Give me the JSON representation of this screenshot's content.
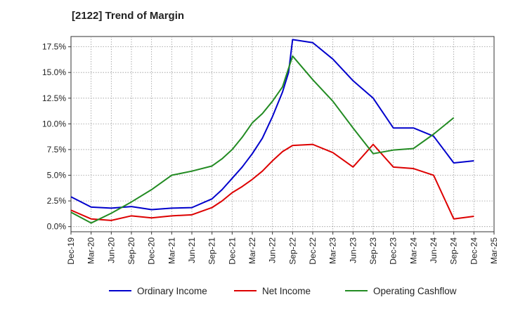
{
  "chart_data": {
    "type": "line",
    "title": "[2122]  Trend of Margin",
    "xlabel": "",
    "ylabel": "",
    "ylim": [
      -0.5,
      18.5
    ],
    "y_ticks": [
      "0.0%",
      "2.5%",
      "5.0%",
      "7.5%",
      "10.0%",
      "12.5%",
      "15.0%",
      "17.5%"
    ],
    "y_tick_values": [
      0,
      2.5,
      5,
      7.5,
      10,
      12.5,
      15,
      17.5
    ],
    "x_ticks": [
      "Dec-19",
      "Mar-20",
      "Jun-20",
      "Sep-20",
      "Dec-20",
      "Mar-21",
      "Jun-21",
      "Sep-21",
      "Dec-21",
      "Mar-22",
      "Jun-22",
      "Sep-22",
      "Dec-22",
      "Mar-23",
      "Jun-23",
      "Sep-23",
      "Dec-23",
      "Mar-24",
      "Jun-24",
      "Sep-24",
      "Dec-24",
      "Mar-25"
    ],
    "grid": true,
    "legend_position": "bottom",
    "series": [
      {
        "name": "Ordinary Income",
        "color": "#0000cc",
        "points": [
          [
            0,
            2.9
          ],
          [
            1,
            1.9
          ],
          [
            2,
            1.8
          ],
          [
            3,
            1.95
          ],
          [
            4,
            1.65
          ],
          [
            5,
            1.8
          ],
          [
            6,
            1.85
          ],
          [
            7,
            2.7
          ],
          [
            7.5,
            3.6
          ],
          [
            8,
            4.7
          ],
          [
            8.5,
            5.8
          ],
          [
            9,
            7.1
          ],
          [
            9.5,
            8.6
          ],
          [
            10,
            10.7
          ],
          [
            10.5,
            13.1
          ],
          [
            10.8,
            15.0
          ],
          [
            11,
            18.2
          ],
          [
            12,
            17.9
          ],
          [
            13,
            16.3
          ],
          [
            14,
            14.2
          ],
          [
            15,
            12.5
          ],
          [
            16,
            9.6
          ],
          [
            17,
            9.6
          ],
          [
            18,
            8.8
          ],
          [
            19,
            6.2
          ],
          [
            20,
            6.4
          ]
        ]
      },
      {
        "name": "Net Income",
        "color": "#dd0000",
        "points": [
          [
            0,
            1.6
          ],
          [
            1,
            0.75
          ],
          [
            2,
            0.6
          ],
          [
            3,
            1.05
          ],
          [
            4,
            0.85
          ],
          [
            5,
            1.05
          ],
          [
            6,
            1.15
          ],
          [
            7,
            1.85
          ],
          [
            7.5,
            2.5
          ],
          [
            8,
            3.3
          ],
          [
            8.5,
            3.9
          ],
          [
            9,
            4.6
          ],
          [
            9.5,
            5.4
          ],
          [
            10,
            6.4
          ],
          [
            10.5,
            7.3
          ],
          [
            11,
            7.9
          ],
          [
            12,
            8.0
          ],
          [
            13,
            7.2
          ],
          [
            14,
            5.8
          ],
          [
            15,
            8.0
          ],
          [
            16,
            5.8
          ],
          [
            17,
            5.65
          ],
          [
            18,
            5.0
          ],
          [
            19,
            0.75
          ],
          [
            20,
            1.0
          ]
        ]
      },
      {
        "name": "Operating Cashflow",
        "color": "#228B22",
        "points": [
          [
            0,
            1.4
          ],
          [
            1,
            0.35
          ],
          [
            2,
            1.3
          ],
          [
            3,
            2.4
          ],
          [
            4,
            3.6
          ],
          [
            5,
            5.0
          ],
          [
            6,
            5.4
          ],
          [
            7,
            5.9
          ],
          [
            7.5,
            6.6
          ],
          [
            8,
            7.5
          ],
          [
            8.5,
            8.7
          ],
          [
            9,
            10.1
          ],
          [
            9.5,
            11.0
          ],
          [
            10,
            12.2
          ],
          [
            10.5,
            13.6
          ],
          [
            11,
            16.6
          ],
          [
            12,
            14.3
          ],
          [
            13,
            12.2
          ],
          [
            14,
            9.6
          ],
          [
            15,
            7.1
          ],
          [
            16,
            7.45
          ],
          [
            17,
            7.6
          ],
          [
            18,
            9.0
          ],
          [
            19,
            10.6
          ]
        ]
      }
    ]
  }
}
